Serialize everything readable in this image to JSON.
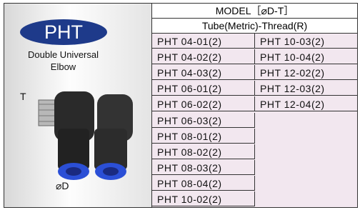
{
  "header": {
    "model": "MODEL［⌀D-T］",
    "subheader": "Tube(Metric)-Thread(R)"
  },
  "left": {
    "badge": "PHT",
    "description": [
      "Double Universal",
      "Elbow"
    ],
    "label_t": "T",
    "label_d": "⌀D"
  },
  "table": {
    "columns": [
      [
        "PHT 04-01(2)",
        "PHT 04-02(2)",
        "PHT 04-03(2)",
        "PHT 06-01(2)",
        "PHT 06-02(2)",
        "PHT 06-03(2)",
        "PHT 08-01(2)",
        "PHT 08-02(2)",
        "PHT 08-03(2)",
        "PHT 08-04(2)",
        "PHT 10-02(2)"
      ],
      [
        "PHT 10-03(2)",
        "PHT 10-04(2)",
        "PHT 12-02(2)",
        "PHT 12-03(2)",
        "PHT 12-04(2)"
      ]
    ]
  }
}
